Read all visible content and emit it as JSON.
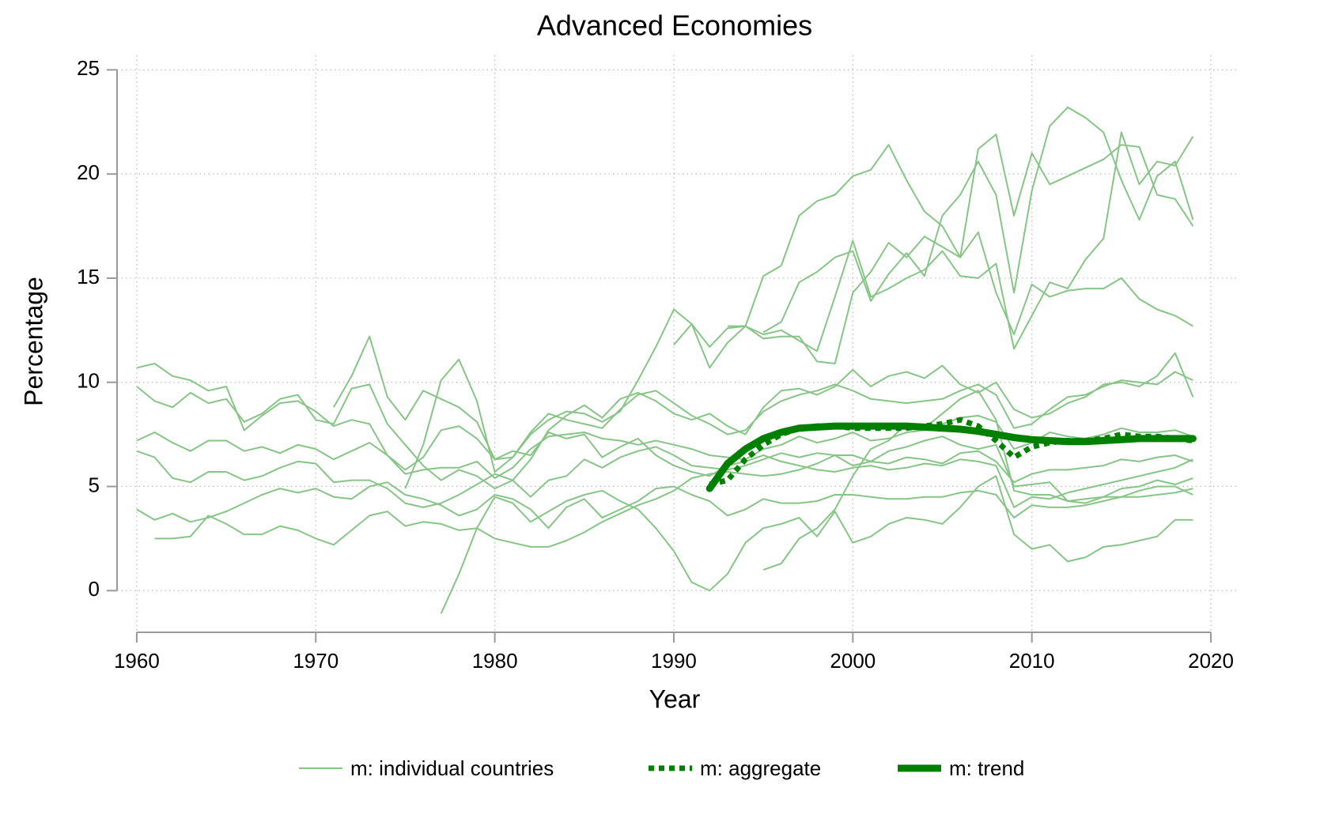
{
  "chart_data": {
    "type": "line",
    "title": "Advanced Economies",
    "xlabel": "Year",
    "ylabel": "Percentage",
    "xlim": [
      1958.9,
      2021.5
    ],
    "ylim": [
      -2,
      26
    ],
    "xticks": [
      1960,
      1970,
      1980,
      1990,
      2000,
      2010,
      2020
    ],
    "yticks": [
      0,
      5,
      10,
      15,
      20,
      25
    ],
    "grid": true,
    "legend": "bottom",
    "x": [
      1960,
      1961,
      1962,
      1963,
      1964,
      1965,
      1966,
      1967,
      1968,
      1969,
      1970,
      1971,
      1972,
      1973,
      1974,
      1975,
      1976,
      1977,
      1978,
      1979,
      1980,
      1981,
      1982,
      1983,
      1984,
      1985,
      1986,
      1987,
      1988,
      1989,
      1990,
      1991,
      1992,
      1993,
      1994,
      1995,
      1996,
      1997,
      1998,
      1999,
      2000,
      2001,
      2002,
      2003,
      2004,
      2005,
      2006,
      2007,
      2008,
      2009,
      2010,
      2011,
      2012,
      2013,
      2014,
      2015,
      2016,
      2017,
      2018,
      2019
    ],
    "countries": {
      "name": "m: individual countries",
      "color": "#86c586",
      "lines": [
        [
          null,
          null,
          null,
          null,
          null,
          null,
          null,
          null,
          null,
          null,
          null,
          null,
          null,
          null,
          null,
          null,
          null,
          null,
          null,
          null,
          null,
          null,
          null,
          null,
          null,
          null,
          null,
          null,
          null,
          null,
          11.8,
          12.8,
          10.7,
          11.9,
          12.7,
          15.1,
          15.6,
          18.0,
          18.7,
          19.0,
          19.9,
          20.2,
          21.4,
          19.7,
          18.2,
          17.5,
          16.0,
          21.2,
          21.9,
          18.0,
          21.0,
          19.5,
          19.9,
          20.3,
          20.7,
          21.4,
          21.3,
          19.0,
          18.8,
          17.5
        ],
        [
          10.7,
          10.9,
          10.3,
          10.1,
          9.6,
          9.8,
          7.7,
          8.4,
          9.0,
          9.1,
          8.6,
          7.9,
          8.2,
          8.0,
          6.5,
          5.8,
          6.4,
          7.7,
          7.9,
          7.3,
          6.3,
          6.4,
          7.5,
          8.2,
          8.6,
          8.5,
          8.1,
          8.6,
          10.1,
          11.7,
          13.5,
          12.8,
          11.7,
          12.6,
          12.7,
          12.3,
          12.5,
          12.0,
          11.5,
          14.1,
          16.8,
          14.1,
          14.5,
          15.0,
          15.4,
          16.3,
          15.1,
          15.0,
          15.7,
          11.6,
          13.2,
          14.8,
          14.5,
          15.9,
          16.9,
          22.0,
          19.5,
          20.6,
          20.4,
          21.8
        ],
        [
          null,
          null,
          null,
          null,
          null,
          null,
          null,
          null,
          null,
          null,
          null,
          null,
          null,
          null,
          null,
          null,
          null,
          null,
          null,
          null,
          null,
          null,
          null,
          null,
          null,
          null,
          null,
          null,
          null,
          null,
          null,
          null,
          null,
          null,
          null,
          12.4,
          12.9,
          14.8,
          15.3,
          16.0,
          16.3,
          13.9,
          15.2,
          16.2,
          15.1,
          18.0,
          19.0,
          20.6,
          19.0,
          14.3,
          19.2,
          22.3,
          23.2,
          22.7,
          22.0,
          19.7,
          17.8,
          19.9,
          20.6,
          17.8
        ],
        [
          null,
          null,
          null,
          null,
          null,
          null,
          null,
          null,
          null,
          null,
          null,
          null,
          null,
          null,
          null,
          null,
          null,
          null,
          null,
          null,
          null,
          null,
          null,
          null,
          null,
          null,
          null,
          null,
          null,
          null,
          null,
          null,
          null,
          12.7,
          12.7,
          12.1,
          12.2,
          12.2,
          11.0,
          10.9,
          14.3,
          15.3,
          16.7,
          16.0,
          17.0,
          16.5,
          16.0,
          17.2,
          14.3,
          12.3,
          14.7,
          14.1,
          14.4,
          14.5,
          14.5,
          15.0,
          14.0,
          13.5,
          13.2,
          12.7
        ],
        [
          9.8,
          9.1,
          8.8,
          9.5,
          9.0,
          9.2,
          8.1,
          8.5,
          9.2,
          9.4,
          8.2,
          8.0,
          9.7,
          9.9,
          8.0,
          7.0,
          6.0,
          5.3,
          5.8,
          5.5,
          4.9,
          5.3,
          6.3,
          7.7,
          8.4,
          8.9,
          8.3,
          9.2,
          9.5,
          9.1,
          8.5,
          8.2,
          8.5,
          7.9,
          7.5,
          8.8,
          9.6,
          9.7,
          9.4,
          9.8,
          10.6,
          9.8,
          10.3,
          10.5,
          10.2,
          10.8,
          9.9,
          9.5,
          10.0,
          8.7,
          8.3,
          8.5,
          9.0,
          9.3,
          9.9,
          10.0,
          9.8,
          10.3,
          11.4,
          9.3
        ],
        [
          7.2,
          7.6,
          7.1,
          6.7,
          7.2,
          7.2,
          6.7,
          6.9,
          6.6,
          7.0,
          6.8,
          6.3,
          6.7,
          7.1,
          6.5,
          5.6,
          5.8,
          5.9,
          5.9,
          6.2,
          5.4,
          5.9,
          6.8,
          7.4,
          7.5,
          7.6,
          7.3,
          7.2,
          7.0,
          7.2,
          7.0,
          6.8,
          6.5,
          6.4,
          6.3,
          6.8,
          7.0,
          7.4,
          7.1,
          7.3,
          7.6,
          7.2,
          7.3,
          7.6,
          7.7,
          8.0,
          8.3,
          8.4,
          8.1,
          6.8,
          7.1,
          7.6,
          7.4,
          7.3,
          7.5,
          7.8,
          7.6,
          7.6,
          7.7,
          7.4
        ],
        [
          6.7,
          6.4,
          5.4,
          5.2,
          5.7,
          5.7,
          5.3,
          5.5,
          5.9,
          6.2,
          6.1,
          5.2,
          5.3,
          5.3,
          4.9,
          4.2,
          4.0,
          4.2,
          4.6,
          5.1,
          5.6,
          5.3,
          4.5,
          5.3,
          5.5,
          6.3,
          5.9,
          6.4,
          6.7,
          6.9,
          6.5,
          6.0,
          5.9,
          5.8,
          6.0,
          6.3,
          6.6,
          6.4,
          6.6,
          6.5,
          6.5,
          6.2,
          6.1,
          6.4,
          6.3,
          6.1,
          6.6,
          6.7,
          6.2,
          5.2,
          5.6,
          5.8,
          5.8,
          5.9,
          6.0,
          6.3,
          6.2,
          6.4,
          6.5,
          6.2
        ],
        [
          3.9,
          3.4,
          3.7,
          3.3,
          3.5,
          3.8,
          4.2,
          4.6,
          4.9,
          4.7,
          4.9,
          4.5,
          4.4,
          5.0,
          5.2,
          4.6,
          4.4,
          4.1,
          3.6,
          3.9,
          4.6,
          4.4,
          3.9,
          3.0,
          4.0,
          4.4,
          3.5,
          3.9,
          4.3,
          4.9,
          5.0,
          4.6,
          4.3,
          3.6,
          3.9,
          4.4,
          4.2,
          4.2,
          4.3,
          4.6,
          4.6,
          4.5,
          4.4,
          4.4,
          4.5,
          4.5,
          4.7,
          4.8,
          4.6,
          3.5,
          4.1,
          4.0,
          4.0,
          4.1,
          4.3,
          4.5,
          4.5,
          4.6,
          4.7,
          4.9
        ],
        [
          null,
          2.5,
          2.5,
          2.6,
          3.6,
          3.2,
          2.7,
          2.7,
          3.1,
          2.9,
          2.5,
          2.2,
          2.9,
          3.6,
          3.8,
          3.1,
          3.3,
          3.2,
          2.9,
          3.0,
          2.5,
          2.3,
          2.1,
          2.1,
          2.4,
          2.8,
          3.3,
          3.7,
          4.1,
          4.4,
          4.8,
          5.4,
          5.6,
          5.7,
          5.6,
          5.5,
          5.6,
          5.8,
          6.1,
          6.5,
          6.0,
          6.2,
          6.7,
          6.9,
          7.2,
          7.4,
          7.0,
          6.8,
          7.0,
          5.0,
          5.1,
          5.2,
          4.3,
          4.2,
          4.5,
          4.9,
          5.0,
          5.3,
          5.1,
          5.4
        ],
        [
          null,
          null,
          null,
          null,
          null,
          null,
          null,
          null,
          null,
          null,
          null,
          null,
          null,
          null,
          null,
          null,
          null,
          -1.1,
          0.8,
          3.0,
          4.5,
          4.2,
          3.3,
          3.8,
          4.3,
          4.6,
          4.8,
          4.3,
          3.9,
          3.0,
          1.9,
          0.4,
          0.0,
          0.8,
          2.3,
          3.0,
          3.2,
          3.5,
          2.6,
          3.8,
          2.3,
          2.6,
          3.2,
          3.5,
          3.4,
          3.2,
          4.0,
          5.0,
          5.5,
          2.7,
          2.0,
          2.2,
          1.4,
          1.6,
          2.1,
          2.2,
          2.4,
          2.6,
          3.4,
          3.4
        ],
        [
          null,
          null,
          null,
          null,
          null,
          null,
          null,
          null,
          null,
          null,
          null,
          null,
          null,
          null,
          null,
          null,
          null,
          null,
          null,
          null,
          null,
          null,
          null,
          null,
          null,
          null,
          null,
          null,
          null,
          null,
          null,
          null,
          null,
          null,
          null,
          1.0,
          1.3,
          2.5,
          3.0,
          3.9,
          5.5,
          6.8,
          7.2,
          8.0,
          7.8,
          8.5,
          9.2,
          9.6,
          8.2,
          4.8,
          4.6,
          4.6,
          4.3,
          4.4,
          4.5,
          4.5,
          4.8,
          5.0,
          5.0,
          4.6
        ],
        [
          null,
          null,
          null,
          null,
          null,
          null,
          null,
          null,
          null,
          null,
          null,
          8.8,
          10.3,
          12.2,
          9.3,
          8.2,
          9.6,
          9.2,
          8.8,
          8.1,
          6.3,
          6.7,
          6.5,
          7.6,
          7.3,
          7.5,
          6.4,
          6.9,
          7.3,
          6.5,
          6.0,
          5.7,
          5.5,
          6.0,
          6.2,
          6.5,
          6.2,
          6.0,
          5.8,
          5.7,
          5.9,
          6.0,
          5.8,
          5.9,
          6.1,
          6.0,
          6.3,
          6.2,
          6.0,
          4.0,
          4.5,
          4.4,
          4.7,
          4.9,
          5.1,
          5.3,
          5.5,
          5.7,
          5.9,
          6.3
        ],
        [
          null,
          null,
          null,
          null,
          null,
          null,
          null,
          null,
          null,
          null,
          null,
          null,
          null,
          null,
          null,
          4.9,
          7.0,
          10.1,
          11.1,
          9.1,
          5.7,
          6.4,
          7.6,
          8.5,
          8.2,
          8.0,
          7.8,
          8.7,
          9.4,
          9.6,
          9.0,
          8.4,
          8.0,
          7.5,
          7.7,
          8.6,
          9.1,
          9.4,
          9.6,
          9.9,
          9.6,
          9.2,
          9.1,
          9.0,
          9.1,
          9.2,
          9.6,
          9.9,
          9.4,
          7.8,
          8.0,
          8.7,
          9.3,
          9.4,
          9.8,
          10.1,
          10.0,
          9.9,
          10.5,
          10.1
        ]
      ]
    },
    "series": [
      {
        "name": "m: aggregate",
        "color": "#008000",
        "dashed": true,
        "values": [
          null,
          null,
          null,
          null,
          null,
          null,
          null,
          null,
          null,
          null,
          null,
          null,
          null,
          null,
          null,
          null,
          null,
          null,
          null,
          null,
          null,
          null,
          null,
          null,
          null,
          null,
          null,
          null,
          null,
          null,
          null,
          null,
          5.1,
          5.3,
          6.3,
          7.0,
          7.5,
          7.8,
          7.9,
          7.9,
          7.8,
          7.8,
          7.8,
          7.8,
          7.9,
          8.0,
          8.2,
          7.9,
          7.2,
          6.4,
          6.9,
          7.1,
          7.2,
          7.2,
          7.3,
          7.5,
          7.4,
          7.4,
          7.3,
          7.2
        ]
      },
      {
        "name": "m: trend",
        "color": "#008000",
        "dashed": false,
        "values": [
          null,
          null,
          null,
          null,
          null,
          null,
          null,
          null,
          null,
          null,
          null,
          null,
          null,
          null,
          null,
          null,
          null,
          null,
          null,
          null,
          null,
          null,
          null,
          null,
          null,
          null,
          null,
          null,
          null,
          null,
          null,
          null,
          4.9,
          6.1,
          6.8,
          7.3,
          7.6,
          7.8,
          7.85,
          7.9,
          7.9,
          7.9,
          7.9,
          7.9,
          7.85,
          7.8,
          7.75,
          7.65,
          7.5,
          7.35,
          7.25,
          7.2,
          7.15,
          7.15,
          7.2,
          7.25,
          7.3,
          7.3,
          7.3,
          7.3
        ]
      }
    ]
  }
}
